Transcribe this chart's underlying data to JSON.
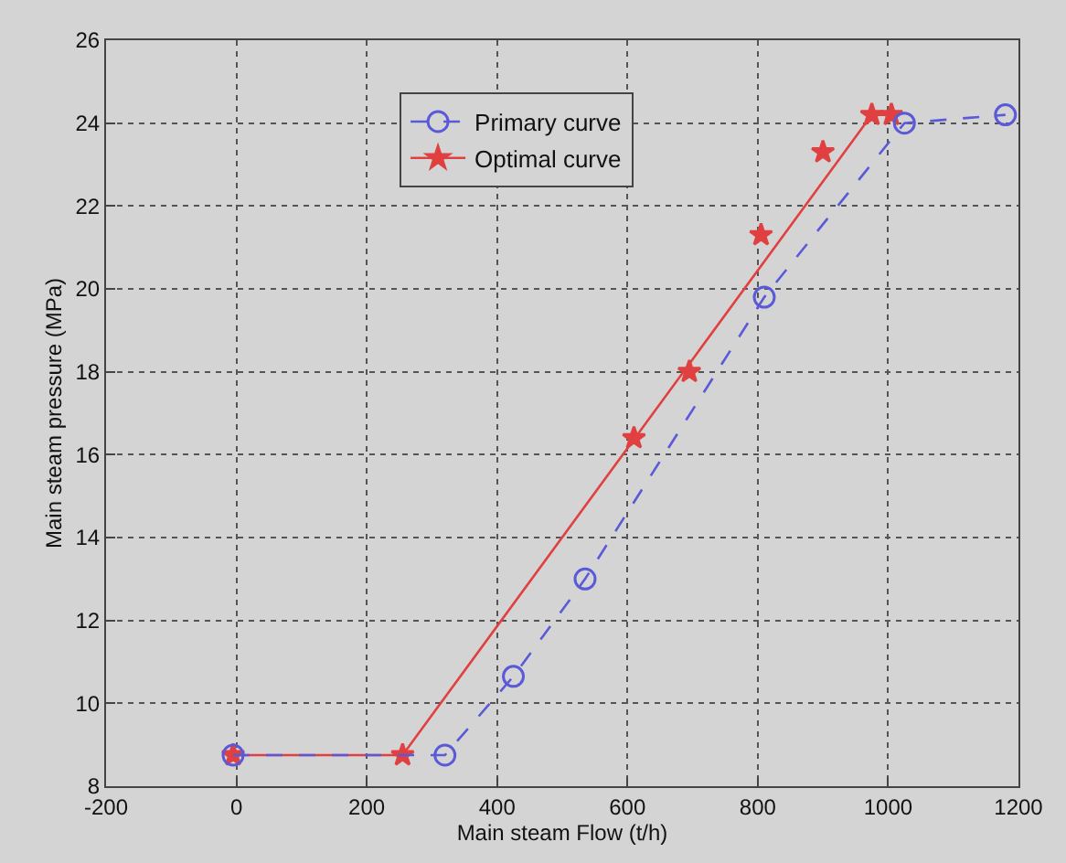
{
  "chart_data": {
    "type": "line",
    "xlabel": "Main steam Flow (t/h)",
    "ylabel": "Main steam pressure (MPa)",
    "xlim": [
      -200,
      1200
    ],
    "xticks": [
      -200,
      0,
      200,
      400,
      600,
      800,
      1000,
      1200
    ],
    "ylim": [
      8,
      26
    ],
    "yticks": [
      8,
      10,
      12,
      14,
      16,
      18,
      20,
      22,
      24,
      26
    ],
    "grid": true,
    "legend": "top",
    "series": [
      {
        "name": "Primary curve",
        "color": "#5a5ad8",
        "x": [
          -5,
          320,
          425,
          535,
          810,
          1025,
          1180
        ],
        "values": [
          8.75,
          8.75,
          10.65,
          13,
          19.8,
          24,
          24.2
        ],
        "marker": "circle",
        "line_style": "dashed"
      },
      {
        "name": "Optimal curve",
        "color": "#e04040",
        "x": [
          -5,
          255,
          975,
          1005
        ],
        "values": [
          8.75,
          8.75,
          24.2,
          24.2
        ],
        "marker": "star",
        "line_style": "solid"
      },
      {
        "type": "scatter",
        "color": "#e04040",
        "x": [
          610,
          695,
          805,
          900
        ],
        "values": [
          16.4,
          18,
          21.3,
          23.3
        ],
        "marker": "star"
      }
    ]
  }
}
